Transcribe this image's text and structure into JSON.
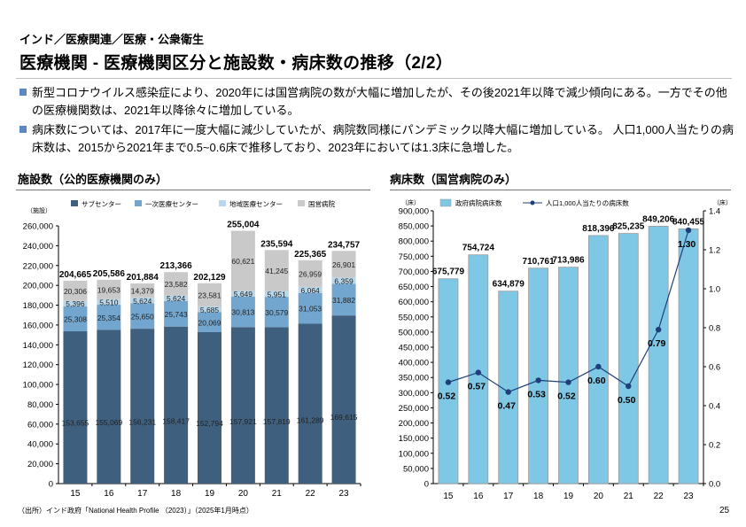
{
  "header": {
    "breadcrumb": "インド／医療関連／医療・公衆衛生",
    "title": "医療機関 - 医療機関区分と施設数・病床数の推移（2/2）"
  },
  "bullets": [
    "新型コロナウイルス感染症により、2020年には国営病院の数が大幅に増加したが、その後2021年以降で減少傾向にある。一方でその他の医療機関数は、2021年以降徐々に増加している。",
    "病床数については、2017年に一度大幅に減少していたが、病院数同様にパンデミック以降大幅に増加している。 人口1,000人当たりの病床数は、2015から2021年まで0.5~0.6床で推移しており、2023年においては1.3床に急増した。"
  ],
  "footer": {
    "source": "（出所）インド政府「National Health Profile （2023）」（2025年1月時点）",
    "page_number": "25"
  },
  "colors": {
    "bullet": "#5b87c5",
    "sub_center": "#3f5f7e",
    "phc": "#73a6cf",
    "chc": "#b8d7ea",
    "govt_hospital": "#c9c9c9",
    "beds_bar": "#7ec8e6",
    "beds_line": "#1f3f7a"
  },
  "chart_data": [
    {
      "type": "bar",
      "stacked": true,
      "title": "施設数（公的医療機関のみ）",
      "ylabel": "（施設）",
      "ylim": [
        0,
        260000
      ],
      "yticks": [
        "0",
        "20,000",
        "40,000",
        "60,000",
        "80,000",
        "100,000",
        "120,000",
        "140,000",
        "160,000",
        "180,000",
        "200,000",
        "220,000",
        "240,000",
        "260,000"
      ],
      "categories": [
        "15",
        "16",
        "17",
        "18",
        "19",
        "20",
        "21",
        "22",
        "23"
      ],
      "legend_position": "top",
      "series": [
        {
          "name": "サブセンター",
          "values": [
            153655,
            155069,
            156231,
            158417,
            152794,
            157921,
            157819,
            161289,
            169615
          ],
          "labels": [
            "153,655",
            "155,069",
            "156,231",
            "158,417",
            "152,794",
            "157,921",
            "157,819",
            "161,289",
            "169,615"
          ]
        },
        {
          "name": "一次医療センター",
          "values": [
            25308,
            25354,
            25650,
            25743,
            20069,
            30813,
            30579,
            31053,
            31882
          ],
          "labels": [
            "25,308",
            "25,354",
            "25,650",
            "25,743",
            "20,069",
            "30,813",
            "30,579",
            "31,053",
            "31,882"
          ]
        },
        {
          "name": "地域医療センター",
          "values": [
            5396,
            5510,
            5624,
            5624,
            5685,
            5649,
            5951,
            6064,
            6359
          ],
          "labels": [
            "5,396",
            "5,510",
            "5,624",
            "5,624",
            "5,685",
            "5,649",
            "5,951",
            "6,064",
            "6,359"
          ]
        },
        {
          "name": "国営病院",
          "values": [
            20306,
            19653,
            14379,
            23582,
            23581,
            60621,
            41245,
            26959,
            26901
          ],
          "labels": [
            "20,306",
            "19,653",
            "14,379",
            "23,582",
            "23,581",
            "60,621",
            "41,245",
            "26,959",
            "26,901"
          ]
        }
      ],
      "totals": [
        "204,665",
        "205,586",
        "201,884",
        "213,366",
        "202,129",
        "255,004",
        "235,594",
        "225,365",
        "234,757"
      ]
    },
    {
      "type": "bar+line",
      "title": "病床数（国営病院のみ）",
      "ylabel_left": "（床）",
      "ylabel_right": "（床）",
      "ylim_left": [
        0,
        900000
      ],
      "ylim_right": [
        0,
        1.4
      ],
      "yticks_left": [
        "0",
        "50,000",
        "100,000",
        "150,000",
        "200,000",
        "250,000",
        "300,000",
        "350,000",
        "400,000",
        "450,000",
        "500,000",
        "550,000",
        "600,000",
        "650,000",
        "700,000",
        "750,000",
        "800,000",
        "850,000",
        "900,000"
      ],
      "yticks_right": [
        "0.0",
        "0.2",
        "0.4",
        "0.6",
        "0.8",
        "1.0",
        "1.2",
        "1.4"
      ],
      "categories": [
        "15",
        "16",
        "17",
        "18",
        "19",
        "20",
        "21",
        "22",
        "23"
      ],
      "legend_position": "top",
      "series": [
        {
          "name": "政府病院病床数",
          "axis": "left",
          "values": [
            675779,
            754724,
            634879,
            710761,
            713986,
            818396,
            825235,
            849206,
            840455
          ],
          "labels": [
            "675,779",
            "754,724",
            "634,879",
            "710,761",
            "713,986",
            "818,396",
            "825,235",
            "849,206",
            "840,455"
          ]
        },
        {
          "name": "人口1,000人当たりの病床数",
          "axis": "right",
          "values": [
            0.52,
            0.57,
            0.47,
            0.53,
            0.52,
            0.6,
            0.5,
            0.79,
            1.3
          ],
          "labels": [
            "0.52",
            "0.57",
            "0.47",
            "0.53",
            "0.52",
            "0.60",
            "0.50",
            "0.79",
            "1.30"
          ]
        }
      ]
    }
  ]
}
